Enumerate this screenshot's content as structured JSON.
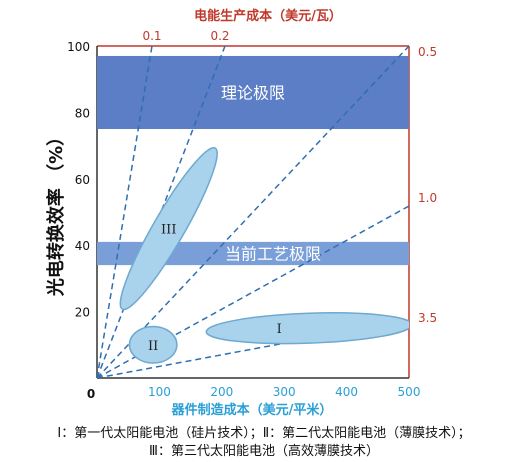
{
  "chart_data": {
    "type": "scatter",
    "top_axis_title": "电能生产成本（美元/瓦）",
    "top_ticks": [
      "0.1",
      "0.2"
    ],
    "right_ticks": [
      "0.5",
      "1.0",
      "3.5"
    ],
    "ylabel": "光电转换效率 （%）",
    "xlabel": "器件制造成本（美元/平米）",
    "x_ticks": [
      "100",
      "200",
      "300",
      "400",
      "500"
    ],
    "y_ticks": [
      "20",
      "40",
      "60",
      "80",
      "100"
    ],
    "origin_label": "0",
    "xlim": [
      0,
      500
    ],
    "ylim": [
      0,
      100
    ],
    "bands": [
      {
        "label": "理论极限",
        "y_from": 75,
        "y_to": 97,
        "color": "#5b7ec6"
      },
      {
        "label": "当前工艺极限",
        "y_from": 34,
        "y_to": 41,
        "color": "#7a9ed8"
      }
    ],
    "regions": [
      {
        "label": "I",
        "cx": 340,
        "cy": 15,
        "rx": 165,
        "ry": 4.5,
        "angle_deg": -2
      },
      {
        "label": "II",
        "cx": 90,
        "cy": 10,
        "rx": 38,
        "ry": 5.5,
        "angle_deg": 0
      },
      {
        "label": "III",
        "cx": 115,
        "cy": 45,
        "rx": 25,
        "ry": 28,
        "angle_deg": 30
      }
    ],
    "cost_lines": [
      0.1,
      0.2,
      0.5,
      1.0,
      3.5
    ],
    "colors": {
      "region_fill": "#a9d2ec",
      "region_stroke": "#6fa9d0",
      "axis_red": "#c0392b",
      "x_blue": "#2a9fd6"
    }
  },
  "caption": {
    "line1": "Ⅰ：第一代太阳能电池（硅片技术）；Ⅱ：第二代太阳能电池（薄膜技术）；",
    "line2": "Ⅲ：第三代太阳能电池（高效薄膜技术）"
  }
}
